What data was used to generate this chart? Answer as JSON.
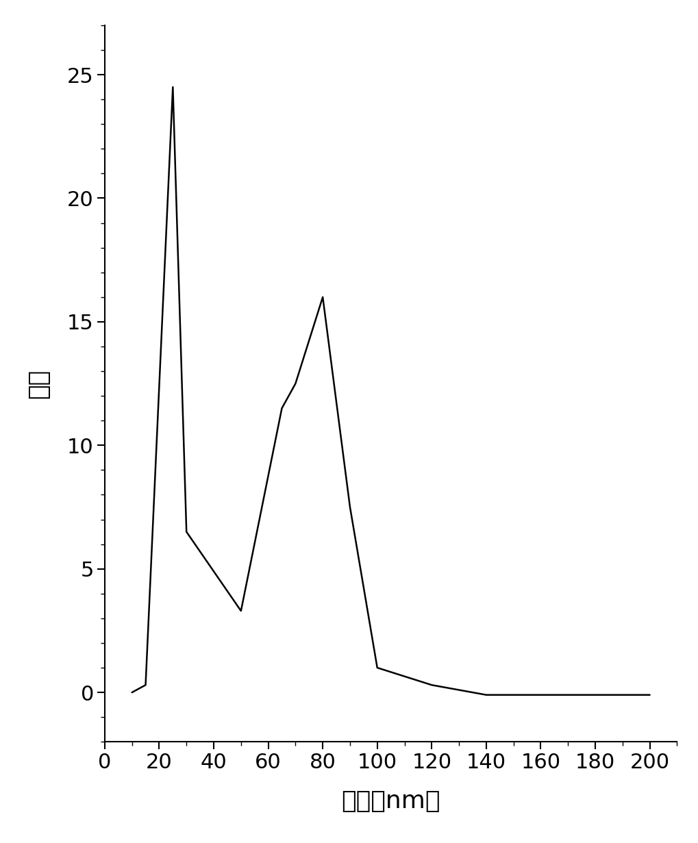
{
  "x": [
    10,
    15,
    25,
    30,
    50,
    65,
    70,
    80,
    90,
    100,
    120,
    140,
    160,
    180,
    200
  ],
  "y": [
    0,
    0.3,
    24.5,
    6.5,
    3.3,
    11.5,
    12.5,
    16,
    7.5,
    1.0,
    0.3,
    -0.1,
    -0.1,
    -0.1,
    -0.1
  ],
  "xlim": [
    0,
    210
  ],
  "ylim": [
    -2,
    27
  ],
  "xticks": [
    0,
    20,
    40,
    60,
    80,
    100,
    120,
    140,
    160,
    180,
    200
  ],
  "yticks": [
    0,
    5,
    10,
    15,
    20,
    25
  ],
  "xlabel": "粒径（nm）",
  "ylabel": "数量",
  "line_color": "#000000",
  "line_width": 1.8,
  "background_color": "#ffffff",
  "tick_fontsize": 22,
  "label_fontsize": 26,
  "minor_xtick_interval": 10,
  "minor_ytick_interval": 1
}
